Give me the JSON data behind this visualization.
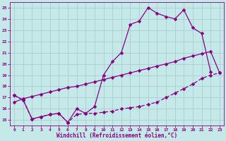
{
  "title": "",
  "xlabel": "Windchill (Refroidissement éolien,°C)",
  "bg_color": "#c5e8e8",
  "line_color": "#880088",
  "grid_color": "#aacece",
  "xlim": [
    -0.5,
    23.5
  ],
  "ylim": [
    14.5,
    25.5
  ],
  "xticks": [
    0,
    1,
    2,
    3,
    4,
    5,
    6,
    7,
    8,
    9,
    10,
    11,
    12,
    13,
    14,
    15,
    16,
    17,
    18,
    19,
    20,
    21,
    22,
    23
  ],
  "yticks": [
    15,
    16,
    17,
    18,
    19,
    20,
    21,
    22,
    23,
    24,
    25
  ],
  "line1_x": [
    0,
    1,
    2,
    3,
    4,
    5,
    6,
    7,
    8,
    9,
    10,
    11,
    12,
    13,
    14,
    15,
    16,
    17,
    18,
    19,
    20,
    21,
    22
  ],
  "line1_y": [
    17.2,
    16.8,
    15.1,
    15.3,
    15.5,
    15.6,
    14.8,
    16.0,
    15.6,
    16.2,
    19.0,
    20.2,
    21.0,
    23.5,
    23.8,
    25.0,
    24.5,
    24.2,
    24.0,
    24.8,
    23.2,
    22.7,
    19.3
  ],
  "line2_x": [
    0,
    1,
    2,
    3,
    4,
    5,
    6,
    7,
    8,
    9,
    10,
    11,
    12,
    13,
    14,
    15,
    16,
    17,
    18,
    19,
    20,
    21,
    22,
    23
  ],
  "line2_y": [
    17.2,
    16.8,
    15.1,
    15.3,
    15.5,
    15.6,
    14.8,
    15.5,
    15.6,
    15.6,
    15.7,
    15.8,
    16.0,
    16.1,
    16.2,
    16.4,
    16.6,
    17.0,
    17.4,
    17.8,
    18.2,
    18.7,
    19.0,
    19.2
  ],
  "line3_x": [
    0,
    1,
    2,
    3,
    4,
    5,
    6,
    7,
    8,
    9,
    10,
    11,
    12,
    13,
    14,
    15,
    16,
    17,
    18,
    19,
    20,
    21,
    22,
    23
  ],
  "line3_y": [
    16.6,
    16.9,
    17.1,
    17.3,
    17.5,
    17.7,
    17.9,
    18.0,
    18.2,
    18.4,
    18.6,
    18.8,
    19.0,
    19.2,
    19.4,
    19.6,
    19.8,
    20.0,
    20.2,
    20.5,
    20.7,
    20.9,
    21.1,
    19.2
  ],
  "markersize": 2.5,
  "linewidth": 0.9
}
